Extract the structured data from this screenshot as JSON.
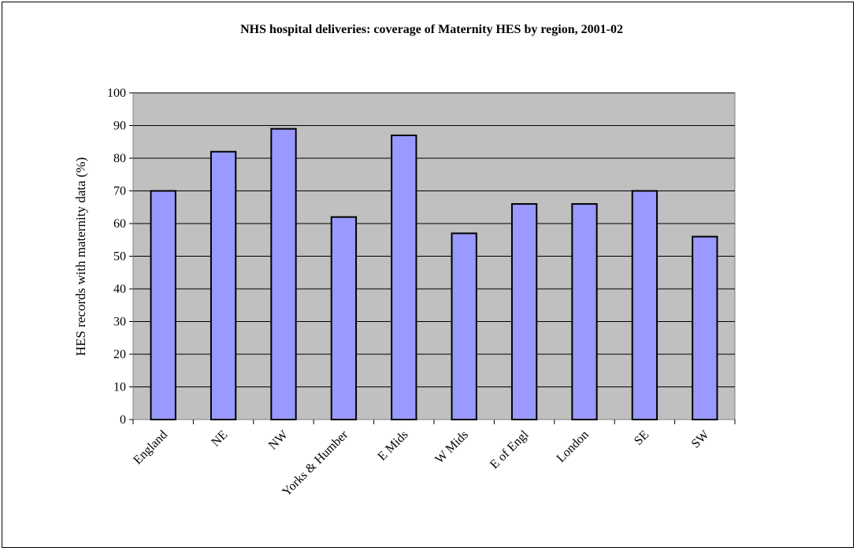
{
  "chart_data": {
    "type": "bar",
    "title": "NHS hospital deliveries: coverage of Maternity HES by region, 2001-02",
    "xlabel": "",
    "ylabel": "HES records with maternity data (%)",
    "ylim": [
      0,
      100
    ],
    "yticks": [
      0,
      10,
      20,
      30,
      40,
      50,
      60,
      70,
      80,
      90,
      100
    ],
    "categories": [
      "England",
      "NE",
      "NW",
      "Yorks & Humber",
      "E Mids",
      "W Mids",
      "E of Engl",
      "London",
      "SE",
      "SW"
    ],
    "values": [
      70,
      82,
      89,
      62,
      87,
      57,
      66,
      66,
      70,
      56
    ],
    "grid": true,
    "legend": "none",
    "colors": {
      "bar_fill": "#9999ff",
      "bar_stroke": "#000000",
      "plot_background": "#c0c0c0",
      "gridline": "#000000",
      "axis": "#808080"
    }
  }
}
